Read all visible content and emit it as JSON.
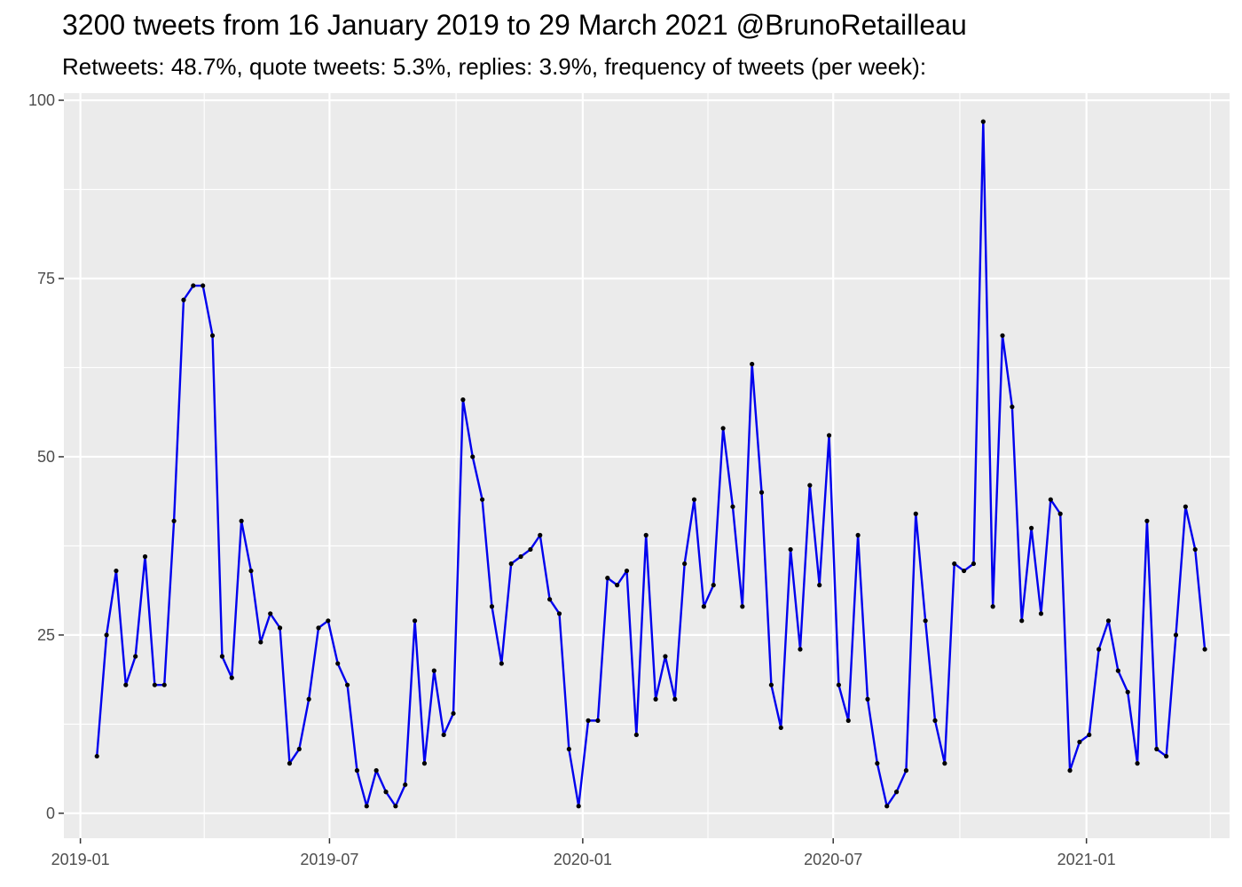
{
  "chart_data": {
    "type": "line",
    "title": "3200 tweets from 16 January 2019 to 29 March 2021 @BrunoRetailleau",
    "subtitle": "Retweets: 48.7%, quote tweets: 5.3%, replies: 3.9%, frequency of tweets (per week):",
    "xlabel": "",
    "ylabel": "",
    "x_range": [
      "2018-12-20",
      "2021-04-15"
    ],
    "ylim": [
      -3.5,
      101
    ],
    "grid": true,
    "legend": "none",
    "y_ticks": [
      0,
      25,
      50,
      75,
      100
    ],
    "y_tick_labels": [
      "0",
      "25",
      "50",
      "75",
      "100"
    ],
    "x_ticks": [
      "2019-01-01",
      "2019-07-01",
      "2020-01-01",
      "2020-07-01",
      "2021-01-01"
    ],
    "x_tick_labels": [
      "2019-01",
      "2019-07",
      "2020-01",
      "2020-07",
      "2021-01"
    ],
    "x_minor_ticks": [
      "2019-04-01",
      "2019-10-01",
      "2020-04-01",
      "2020-10-01",
      "2021-04-01"
    ],
    "colors": {
      "line": "#0000ee",
      "points": "#000000",
      "panel": "#ebebeb",
      "grid": "#ffffff",
      "axis_text": "#4d4d4d"
    },
    "series": [
      {
        "x": [
          "2019-01-13",
          "2019-01-20",
          "2019-01-27",
          "2019-02-03",
          "2019-02-10",
          "2019-02-17",
          "2019-02-24",
          "2019-03-03",
          "2019-03-10",
          "2019-03-17",
          "2019-03-24",
          "2019-03-31",
          "2019-04-07",
          "2019-04-14",
          "2019-04-21",
          "2019-04-28",
          "2019-05-05",
          "2019-05-12",
          "2019-05-19",
          "2019-05-26",
          "2019-06-02",
          "2019-06-09",
          "2019-06-16",
          "2019-06-23",
          "2019-06-30",
          "2019-07-07",
          "2019-07-14",
          "2019-07-21",
          "2019-07-28",
          "2019-08-04",
          "2019-08-11",
          "2019-08-18",
          "2019-08-25",
          "2019-09-01",
          "2019-09-08",
          "2019-09-15",
          "2019-09-22",
          "2019-09-29",
          "2019-10-06",
          "2019-10-13",
          "2019-10-20",
          "2019-10-27",
          "2019-11-03",
          "2019-11-10",
          "2019-11-17",
          "2019-11-24",
          "2019-12-01",
          "2019-12-08",
          "2019-12-15",
          "2019-12-22",
          "2019-12-29",
          "2020-01-05",
          "2020-01-12",
          "2020-01-19",
          "2020-01-26",
          "2020-02-02",
          "2020-02-09",
          "2020-02-16",
          "2020-02-23",
          "2020-03-01",
          "2020-03-08",
          "2020-03-15",
          "2020-03-22",
          "2020-03-29",
          "2020-04-05",
          "2020-04-12",
          "2020-04-19",
          "2020-04-26",
          "2020-05-03",
          "2020-05-10",
          "2020-05-17",
          "2020-05-24",
          "2020-05-31",
          "2020-06-07",
          "2020-06-14",
          "2020-06-21",
          "2020-06-28",
          "2020-07-05",
          "2020-07-12",
          "2020-07-19",
          "2020-07-26",
          "2020-08-02",
          "2020-08-09",
          "2020-08-16",
          "2020-08-23",
          "2020-08-30",
          "2020-09-06",
          "2020-09-13",
          "2020-09-20",
          "2020-09-27",
          "2020-10-04",
          "2020-10-11",
          "2020-10-18",
          "2020-10-25",
          "2020-11-01",
          "2020-11-08",
          "2020-11-15",
          "2020-11-22",
          "2020-11-29",
          "2020-12-06",
          "2020-12-13",
          "2020-12-20",
          "2020-12-27",
          "2021-01-03",
          "2021-01-10",
          "2021-01-17",
          "2021-01-24",
          "2021-01-31",
          "2021-02-07",
          "2021-02-14",
          "2021-02-21",
          "2021-02-28",
          "2021-03-07",
          "2021-03-14",
          "2021-03-21",
          "2021-03-28"
        ],
        "y": [
          8,
          25,
          34,
          18,
          22,
          36,
          18,
          18,
          41,
          72,
          74,
          74,
          67,
          22,
          19,
          41,
          34,
          24,
          28,
          26,
          7,
          9,
          16,
          26,
          27,
          21,
          18,
          6,
          1,
          6,
          3,
          1,
          4,
          27,
          7,
          20,
          11,
          14,
          58,
          50,
          44,
          29,
          21,
          35,
          36,
          37,
          39,
          30,
          28,
          9,
          1,
          13,
          13,
          33,
          32,
          34,
          11,
          39,
          16,
          22,
          16,
          35,
          44,
          29,
          32,
          54,
          43,
          29,
          63,
          45,
          18,
          12,
          37,
          23,
          46,
          32,
          53,
          18,
          13,
          39,
          16,
          7,
          1,
          3,
          6,
          42,
          27,
          13,
          7,
          35,
          34,
          35,
          97,
          29,
          67,
          57,
          27,
          40,
          28,
          44,
          42,
          6,
          10,
          11,
          23,
          27,
          20,
          17,
          7,
          41,
          9,
          8,
          25,
          43,
          37,
          23
        ]
      }
    ]
  }
}
